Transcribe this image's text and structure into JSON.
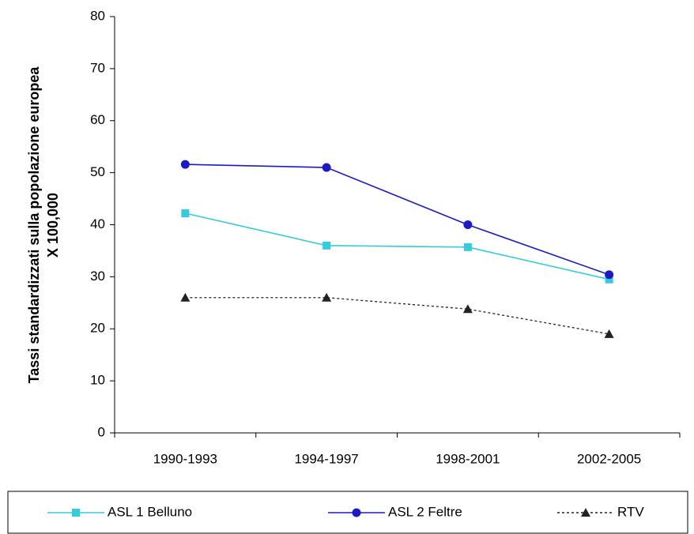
{
  "chart_data": {
    "type": "line",
    "ylabel": [
      "Tassi standardizzati sulla popolazione europea",
      "X 100,000"
    ],
    "categories": [
      "1990-1993",
      "1994-1997",
      "1998-2001",
      "2002-2005"
    ],
    "series": [
      {
        "name": "ASL 1 Belluno",
        "color": "#33ccdd",
        "marker": "square",
        "dash": false,
        "values": [
          42.2,
          36.0,
          35.7,
          29.5
        ]
      },
      {
        "name": "ASL 2 Feltre",
        "color": "#1a1acc",
        "marker": "circle",
        "dash": false,
        "values": [
          51.6,
          51.0,
          40.0,
          30.4
        ]
      },
      {
        "name": "RTV",
        "color": "#222222",
        "marker": "triangle",
        "dash": true,
        "values": [
          26.0,
          26.0,
          23.8,
          19.0
        ]
      }
    ],
    "ylim": [
      0,
      80
    ],
    "yticks": [
      0,
      10,
      20,
      30,
      40,
      50,
      60,
      70,
      80
    ],
    "legend": "bottom"
  }
}
